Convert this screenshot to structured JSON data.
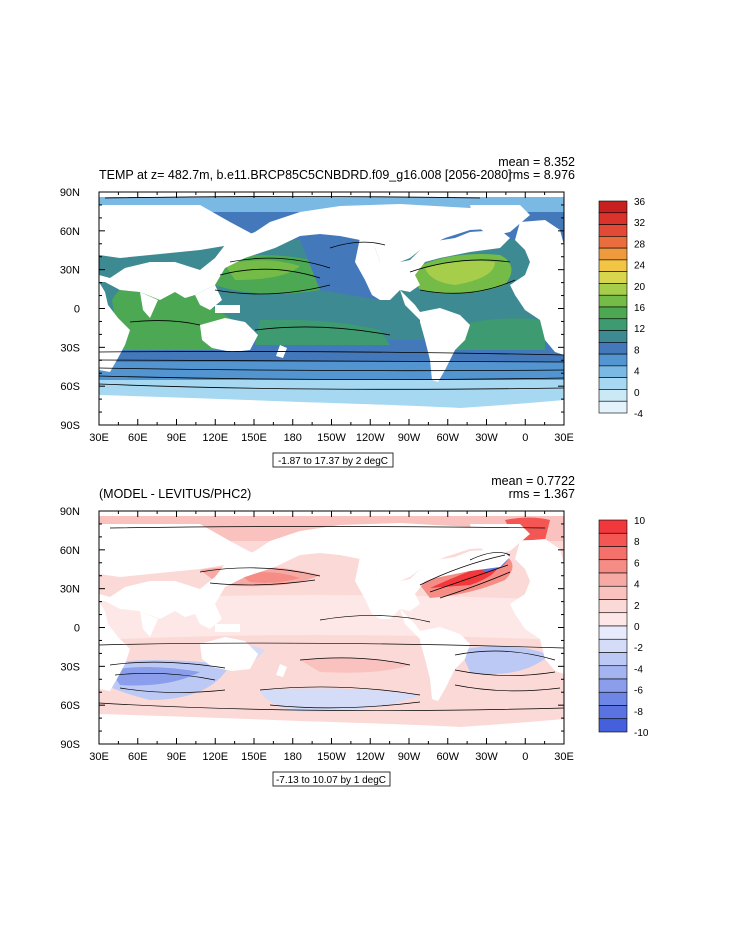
{
  "colors": {
    "land": "#ffffff",
    "contour_line": "#000000",
    "frame": "#000000"
  },
  "panels": [
    {
      "title": "TEMP at z= 482.7m, b.e11.BRCP85C5CNBDRD.f09_g16.008 [2056-2080]",
      "stat1": "mean = 8.352",
      "stat2": "rms = 8.976",
      "contour_info": "-1.87 to 17.37 by 2 degC",
      "x_ticks": [
        "30E",
        "60E",
        "90E",
        "120E",
        "150E",
        "180",
        "150W",
        "120W",
        "90W",
        "60W",
        "30W",
        "0",
        "30E"
      ],
      "y_ticks": [
        "90N",
        "60N",
        "30N",
        "0",
        "30S",
        "60S",
        "90S"
      ],
      "colorbar": {
        "labels": [
          "36",
          "32",
          "28",
          "24",
          "20",
          "16",
          "12",
          "8",
          "4",
          "0",
          "-4"
        ],
        "colors": [
          "#c8201e",
          "#d9332c",
          "#e34a36",
          "#ea6d3d",
          "#f09a3e",
          "#f3c545",
          "#d7d64c",
          "#a7ce4a",
          "#74bb48",
          "#4ca853",
          "#3e9a70",
          "#3d8a93",
          "#4379bb",
          "#5295d1",
          "#79b9e4",
          "#a6d8f1",
          "#cbe8f5",
          "#e4f3fb"
        ]
      }
    },
    {
      "title": "(MODEL - LEVITUS/PHC2)",
      "stat1": "mean = 0.7722",
      "stat2": "rms = 1.367",
      "contour_info": "-7.13 to 10.07 by 1 degC",
      "x_ticks": [
        "30E",
        "60E",
        "90E",
        "120E",
        "150E",
        "180",
        "150W",
        "120W",
        "90W",
        "60W",
        "30W",
        "0",
        "30E"
      ],
      "y_ticks": [
        "90N",
        "60N",
        "30N",
        "0",
        "30S",
        "60S",
        "90S"
      ],
      "colorbar": {
        "labels": [
          "10",
          "8",
          "6",
          "4",
          "2",
          "0",
          "-2",
          "-4",
          "-6",
          "-8",
          "-10"
        ],
        "colors": [
          "#f1383c",
          "#f35653",
          "#f4706b",
          "#f58c85",
          "#f7a9a4",
          "#f9c2bf",
          "#fbd9d7",
          "#fde8e7",
          "#e7ebfb",
          "#d4dcf8",
          "#bdc9f5",
          "#a4b4f1",
          "#8a9eec",
          "#6e86e6",
          "#5a73e1",
          "#4560dc"
        ]
      }
    }
  ],
  "chart_data": [
    {
      "type": "heatmap",
      "title": "TEMP at z= 482.7m, b.e11.BRCP85C5CNBDRD.f09_g16.008 [2056-2080]",
      "annotations": [
        "mean = 8.352",
        "rms = 8.976",
        "-1.87 to 17.37 by 2 degC"
      ],
      "units": "degC",
      "x_range": [
        "30E",
        "30E"
      ],
      "y_range": [
        "90S",
        "90N"
      ],
      "colorbar_range": [
        -4,
        36
      ],
      "colorbar_step": 2,
      "contour_range": [
        -1.87,
        17.37
      ],
      "contour_interval": 2,
      "mean": 8.352,
      "rms": 8.976
    },
    {
      "type": "heatmap",
      "title": "(MODEL - LEVITUS/PHC2)",
      "annotations": [
        "mean = 0.7722",
        "rms = 1.367",
        "-7.13 to 10.07 by 1 degC"
      ],
      "units": "degC",
      "x_range": [
        "30E",
        "30E"
      ],
      "y_range": [
        "90S",
        "90N"
      ],
      "colorbar_range": [
        -10,
        10
      ],
      "colorbar_step": 1,
      "contour_range": [
        -7.13,
        10.07
      ],
      "contour_interval": 1,
      "mean": 0.7722,
      "rms": 1.367
    }
  ]
}
